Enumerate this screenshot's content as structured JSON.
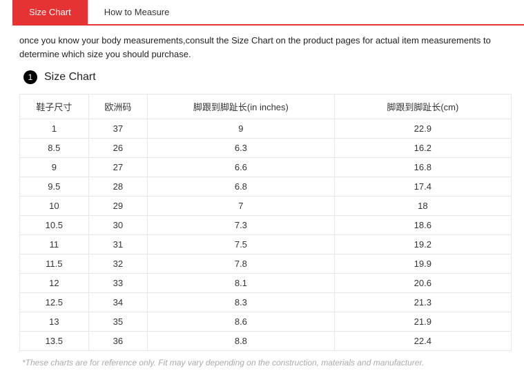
{
  "tabs": {
    "size_chart": "Size Chart",
    "how_to_measure": "How to Measure"
  },
  "intro": "once you know your body measurements,consult the Size Chart on the product pages for actual item measurements to determine which size you should purchase.",
  "section": {
    "badge": "1",
    "title": "Size Chart"
  },
  "table": {
    "columns": [
      "鞋子尺寸",
      "欧洲码",
      "脚跟到脚趾长(in inches)",
      "脚跟到脚趾长(cm)"
    ],
    "rows": [
      [
        "1",
        "37",
        "9",
        "22.9"
      ],
      [
        "8.5",
        "26",
        "6.3",
        "16.2"
      ],
      [
        "9",
        "27",
        "6.6",
        "16.8"
      ],
      [
        "9.5",
        "28",
        "6.8",
        "17.4"
      ],
      [
        "10",
        "29",
        "7",
        "18"
      ],
      [
        "10.5",
        "30",
        "7.3",
        "18.6"
      ],
      [
        "11",
        "31",
        "7.5",
        "19.2"
      ],
      [
        "11.5",
        "32",
        "7.8",
        "19.9"
      ],
      [
        "12",
        "33",
        "8.1",
        "20.6"
      ],
      [
        "12.5",
        "34",
        "8.3",
        "21.3"
      ],
      [
        "13",
        "35",
        "8.6",
        "21.9"
      ],
      [
        "13.5",
        "36",
        "8.8",
        "22.4"
      ]
    ]
  },
  "footnote": "*These charts are for reference only. Fit may vary depending on the construction, materials and manufacturer.",
  "colors": {
    "accent": "#e63232",
    "border": "#e6e6e6",
    "text": "#333333",
    "muted": "#aaaaaa"
  }
}
